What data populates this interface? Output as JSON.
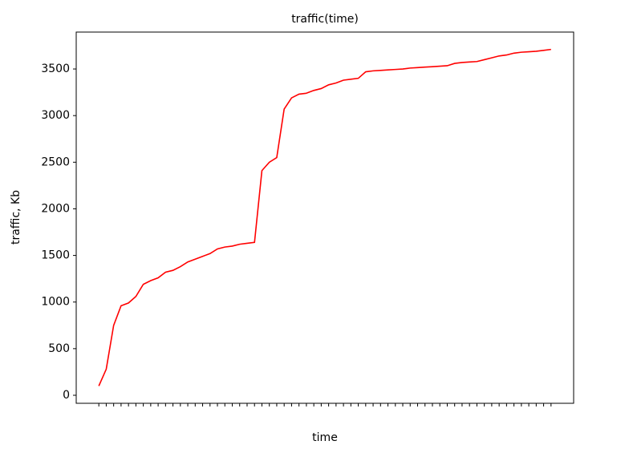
{
  "chart_data": {
    "type": "line",
    "title": "traffic(time)",
    "x_label": "time",
    "y_label": "traffic, Kb",
    "categories": [
      null,
      null,
      null,
      null,
      null,
      null,
      null,
      null,
      null,
      null,
      null,
      null,
      null,
      null,
      null,
      null,
      null,
      null,
      null,
      null,
      null,
      null,
      null,
      null,
      null,
      null,
      null,
      null,
      null,
      null,
      null,
      null,
      null,
      null,
      null,
      null,
      null,
      null,
      null,
      null,
      null,
      null,
      null,
      null,
      null,
      null,
      null,
      null,
      null,
      null,
      null,
      null,
      null,
      null,
      null,
      null,
      null,
      null,
      null,
      null,
      null,
      null
    ],
    "series": [
      {
        "name": "traffic",
        "color": "#ff0000",
        "values": [
          100,
          280,
          750,
          960,
          990,
          1060,
          1190,
          1230,
          1260,
          1320,
          1340,
          1380,
          1430,
          1460,
          1490,
          1520,
          1570,
          1590,
          1600,
          1620,
          1630,
          1640,
          2410,
          2500,
          2550,
          3070,
          3190,
          3230,
          3240,
          3270,
          3290,
          3330,
          3350,
          3380,
          3390,
          3400,
          3470,
          3480,
          3485,
          3490,
          3495,
          3500,
          3510,
          3515,
          3520,
          3525,
          3530,
          3535,
          3560,
          3570,
          3575,
          3580,
          3600,
          3620,
          3640,
          3650,
          3670,
          3680,
          3685,
          3690,
          3700,
          3710
        ]
      }
    ],
    "ylim": [
      -86,
      3896
    ],
    "yticks": [
      0,
      500,
      1000,
      1500,
      2000,
      2500,
      3000,
      3500
    ]
  }
}
